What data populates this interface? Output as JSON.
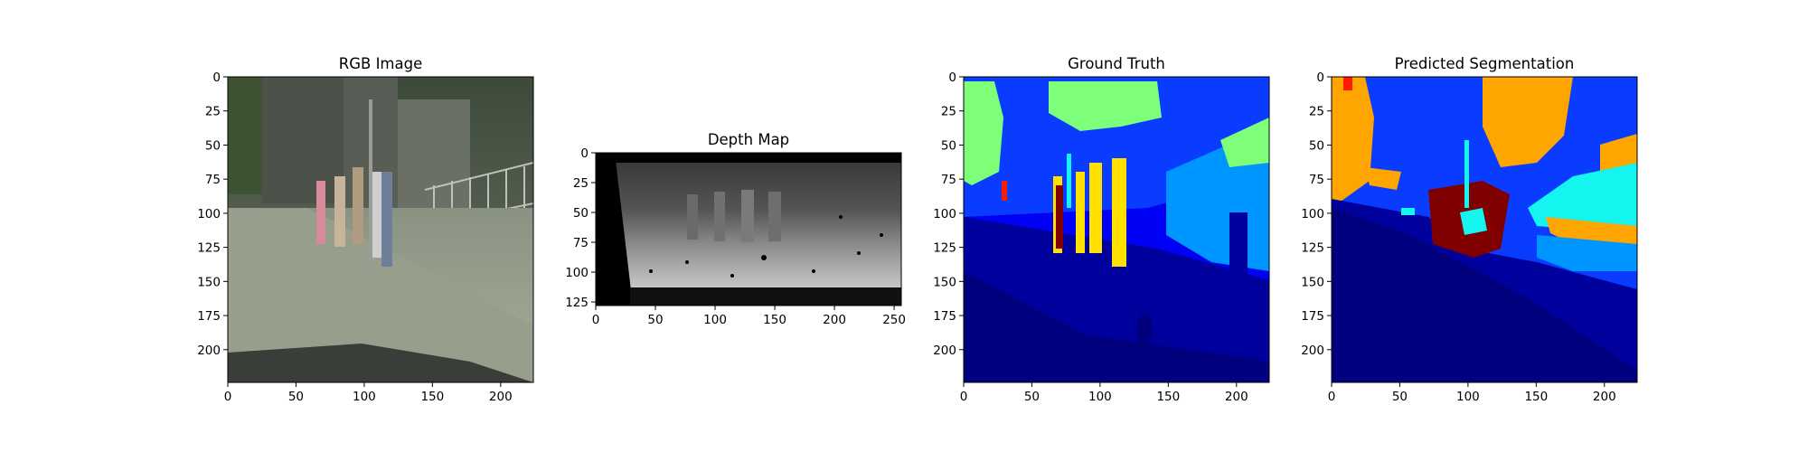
{
  "figure": {
    "background": "#ffffff"
  },
  "chart_data": [
    {
      "type": "image",
      "title": "RGB Image",
      "content": "street scene photograph",
      "xlim": [
        0,
        224
      ],
      "ylim": [
        224,
        0
      ],
      "xticks": [
        0,
        50,
        100,
        150,
        200
      ],
      "yticks": [
        0,
        25,
        50,
        75,
        100,
        125,
        150,
        175,
        200
      ]
    },
    {
      "type": "image",
      "title": "Depth Map",
      "content": "grayscale depth image",
      "xlim": [
        0,
        256
      ],
      "ylim": [
        128,
        0
      ],
      "xticks": [
        0,
        50,
        100,
        150,
        200,
        250
      ],
      "yticks": [
        0,
        25,
        50,
        75,
        100,
        125
      ]
    },
    {
      "type": "image",
      "title": "Ground Truth",
      "content": "segmentation mask",
      "xlim": [
        0,
        224
      ],
      "ylim": [
        224,
        0
      ],
      "xticks": [
        0,
        50,
        100,
        150,
        200
      ],
      "yticks": [
        0,
        25,
        50,
        75,
        100,
        125,
        150,
        175,
        200
      ]
    },
    {
      "type": "image",
      "title": "Predicted Segmentation",
      "content": "segmentation mask",
      "xlim": [
        0,
        224
      ],
      "ylim": [
        224,
        0
      ],
      "xticks": [
        0,
        50,
        100,
        150,
        200
      ],
      "yticks": [
        0,
        25,
        50,
        75,
        100,
        125,
        150,
        175,
        200
      ]
    }
  ],
  "colors": {
    "seg_dark_navy": "#00007f",
    "seg_navy": "#00009c",
    "seg_blue": "#0000f5",
    "seg_royal": "#0a3cff",
    "seg_sky": "#0096ff",
    "seg_cyan": "#14f5f0",
    "seg_green": "#7dff7a",
    "seg_yellow": "#ffe000",
    "seg_orange": "#ffa500",
    "seg_maroon": "#800000",
    "seg_red": "#ff1a00"
  }
}
